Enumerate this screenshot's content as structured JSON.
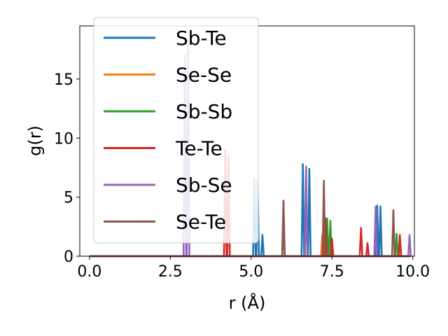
{
  "chart_data": {
    "type": "line",
    "xlabel": "r (Å)",
    "ylabel": "g(r)",
    "xlim": [
      -0.3,
      10.05
    ],
    "ylim": [
      0,
      19.5
    ],
    "xticks": [
      0.0,
      2.5,
      5.0,
      7.5,
      10.0
    ],
    "xtick_labels": [
      "0.0",
      "2.5",
      "5.0",
      "7.5",
      "10.0"
    ],
    "yticks": [
      0,
      5,
      10,
      15
    ],
    "ytick_labels": [
      "0",
      "5",
      "10",
      "15"
    ],
    "grid": false,
    "legend_position": "upper-left",
    "x_range": [
      0,
      9.9
    ],
    "series": [
      {
        "name": "Sb-Te",
        "color": "#1f77b4",
        "peaks": [
          [
            5.1,
            6.5
          ],
          [
            5.2,
            6.3
          ],
          [
            5.35,
            1.8
          ],
          [
            6.6,
            7.8
          ],
          [
            6.8,
            7.4
          ],
          [
            8.9,
            4.3
          ],
          [
            9.0,
            4.2
          ]
        ]
      },
      {
        "name": "Se-Se",
        "color": "#ff7f0e",
        "peaks": [
          [
            4.3,
            8.0
          ],
          [
            7.2,
            1.8
          ]
        ]
      },
      {
        "name": "Sb-Sb",
        "color": "#2ca02c",
        "peaks": [
          [
            6.0,
            2.4
          ],
          [
            6.7,
            4.5
          ],
          [
            7.35,
            3.2
          ],
          [
            7.45,
            3.0
          ],
          [
            9.5,
            1.9
          ],
          [
            9.6,
            1.5
          ]
        ]
      },
      {
        "name": "Te-Te",
        "color": "#d62728",
        "peaks": [
          [
            4.2,
            9.0
          ],
          [
            4.3,
            8.5
          ],
          [
            7.3,
            3.2
          ],
          [
            7.5,
            1.5
          ],
          [
            8.4,
            2.4
          ],
          [
            8.6,
            1.1
          ],
          [
            9.6,
            1.8
          ]
        ]
      },
      {
        "name": "Sb-Se",
        "color": "#9467bd",
        "peaks": [
          [
            2.95,
            17.0
          ],
          [
            3.05,
            18.3
          ],
          [
            6.7,
            7.6
          ],
          [
            8.85,
            4.2
          ],
          [
            9.9,
            1.8
          ]
        ]
      },
      {
        "name": "Se-Te",
        "color": "#8c564b",
        "peaks": [
          [
            6.0,
            4.7
          ],
          [
            7.25,
            6.4
          ],
          [
            9.4,
            3.9
          ]
        ]
      }
    ]
  }
}
